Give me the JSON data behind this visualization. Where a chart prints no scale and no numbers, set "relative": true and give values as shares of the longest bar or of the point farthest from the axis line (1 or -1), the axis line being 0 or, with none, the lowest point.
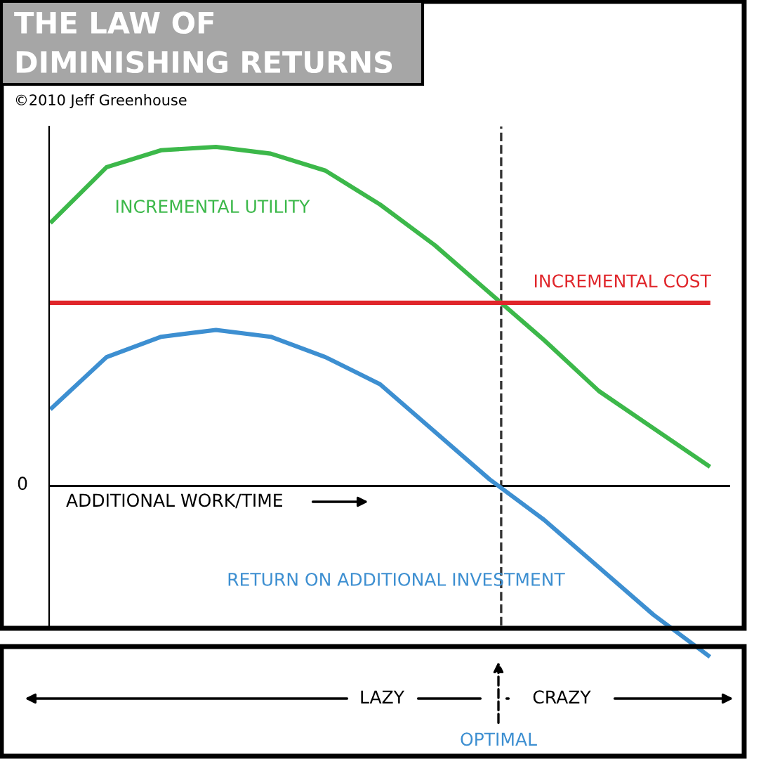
{
  "chart_data": {
    "type": "line",
    "title": "THE LAW OF DIMINISHING RETURNS",
    "subtitle": "©2010 Jeff Greenhouse",
    "relative": true,
    "categories": [
      null,
      null,
      null,
      null,
      null,
      null,
      null,
      null,
      null,
      null,
      null,
      null,
      null
    ],
    "series": [
      {
        "name": "INCREMENTAL UTILITY",
        "color": "#3cb84a",
        "values": [
          0.78,
          0.94,
          0.99,
          1.0,
          0.98,
          0.93,
          0.83,
          0.71,
          0.57,
          0.43,
          0.28,
          0.17,
          0.06
        ]
      },
      {
        "name": "INCREMENTAL COST",
        "color": "#e0262b",
        "values": [
          0.54,
          0.54,
          0.54,
          0.54,
          0.54,
          0.54,
          0.54,
          0.54,
          0.54,
          0.54,
          0.54,
          0.54,
          0.54
        ]
      },
      {
        "name": "RETURN ON ADDITIONAL INVESTMENT",
        "color": "#3d8fd1",
        "values": [
          0.23,
          0.38,
          0.44,
          0.46,
          0.44,
          0.38,
          0.3,
          0.16,
          0.02,
          -0.1,
          -0.24,
          -0.38,
          -0.5
        ]
      }
    ],
    "annotations": [
      "0",
      "ADDITIONAL WORK/TIME",
      "LAZY",
      "CRAZY",
      "OPTIMAL"
    ],
    "legend": false,
    "marker": "none",
    "line_style": "solid"
  }
}
